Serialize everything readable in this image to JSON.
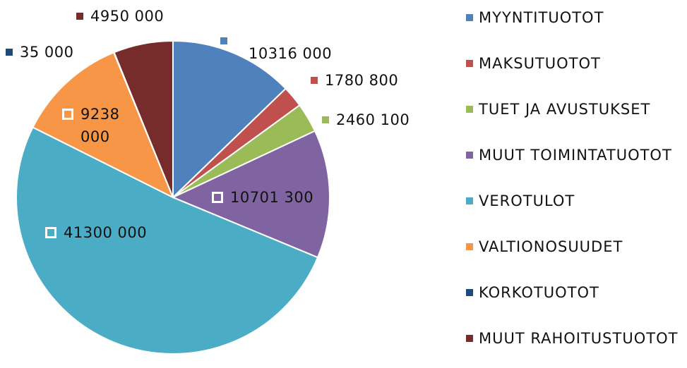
{
  "chart_data": {
    "type": "pie",
    "categories": [
      "MYYNTITUOTOT",
      "MAKSUTUOTOT",
      "TUET JA AVUSTUKSET",
      "MUUT TOIMINTATUOTOT",
      "VEROTULOT",
      "VALTIONOSUUDET",
      "KORKOTUOTOT",
      "MUUT RAHOITUSTUOTOT"
    ],
    "values": [
      10316000,
      1780800,
      2460100,
      10701300,
      41300000,
      9238000,
      35000,
      4950000
    ],
    "value_labels": [
      "10316 000",
      "1780 800",
      "2460 100",
      "10701 300",
      "41300 000",
      "9238 000",
      "35 000",
      "4950 000"
    ],
    "colors": [
      "#4f81bd",
      "#c0504d",
      "#9bbb59",
      "#8064a2",
      "#4bacc6",
      "#f79646",
      "#1f497d",
      "#772c2c"
    ],
    "legend": "right"
  }
}
